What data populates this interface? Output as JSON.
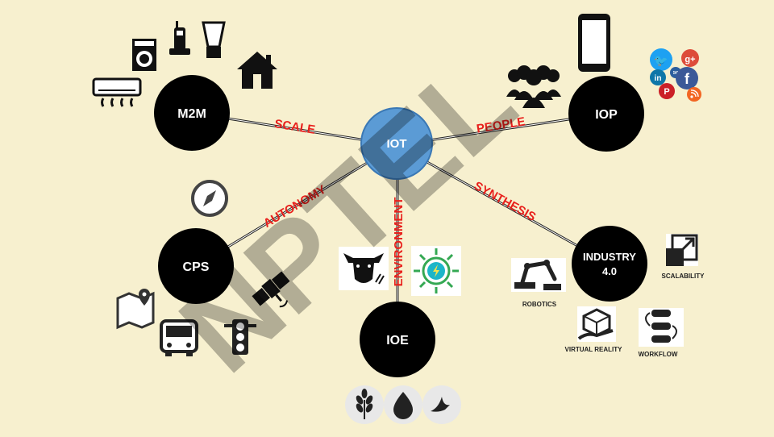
{
  "center": {
    "label": "IOT",
    "color": "#5b9bd5"
  },
  "nodes": {
    "m2m": {
      "label": "M2M"
    },
    "iop": {
      "label": "IOP"
    },
    "cps": {
      "label": "CPS"
    },
    "ioe": {
      "label": "IOE"
    },
    "industry": {
      "line1": "INDUSTRY",
      "line2": "4.0"
    }
  },
  "edges": {
    "scale": "SCALE",
    "people": "PEOPLE",
    "autonomy": "AUTONOMY",
    "environment": "ENVIRONMENT",
    "synthesis": "SYNTHESIS"
  },
  "edge_color": "#e8201c",
  "industry_labels": {
    "robotics": "ROBOTICS",
    "scalability": "SCALABILITY",
    "virtual_reality": "VIRTUAL REALITY",
    "workflow": "WORKFLOW"
  },
  "social": {
    "twitter": "🐦",
    "google_plus": "g+",
    "linkedin": "in",
    "facebook": "f",
    "pinterest": "P",
    "email": "✉"
  },
  "watermark": "NPTEL",
  "icons": [
    "air-conditioner-icon",
    "washing-machine-icon",
    "cordless-phone-icon",
    "blender-icon",
    "house-icon",
    "smartphone-icon",
    "people-group-icon",
    "compass-icon",
    "satellite-icon",
    "map-pin-icon",
    "bus-icon",
    "traffic-light-icon",
    "cow-icon",
    "solar-energy-icon",
    "wheat-icon",
    "water-drop-icon",
    "bird-icon",
    "robot-arm-icon",
    "scalability-icon",
    "vr-box-icon",
    "workflow-icon",
    "rss-icon"
  ]
}
